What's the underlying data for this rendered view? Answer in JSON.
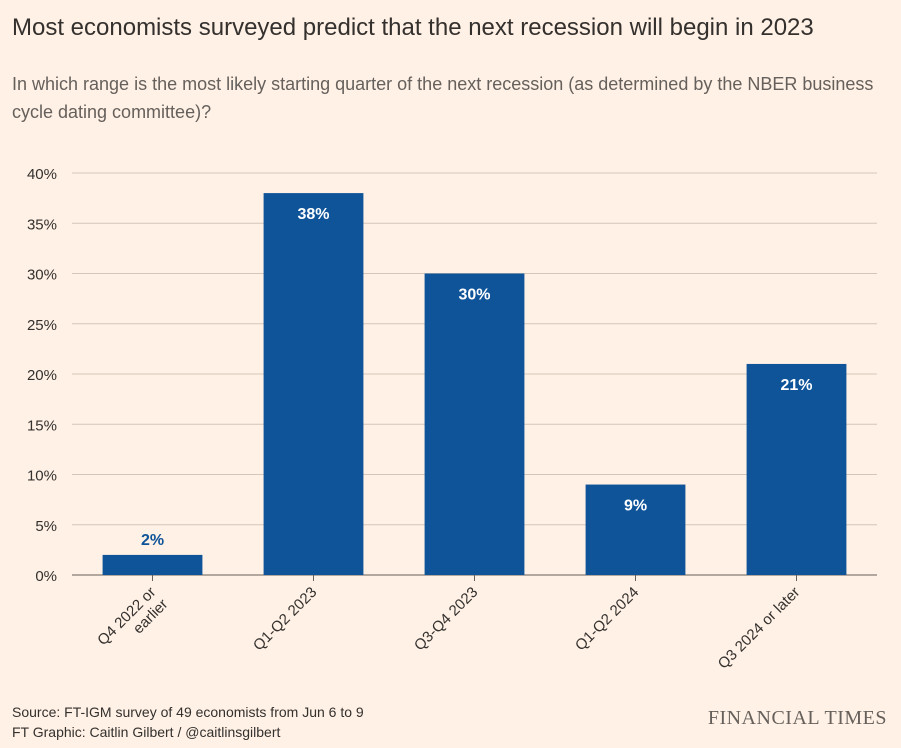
{
  "title": "Most economists surveyed predict that the next recession will begin in 2023",
  "subtitle": "In which range is the most likely starting quarter of the next recession (as determined by the NBER business cycle dating committee)?",
  "source_line": "Source: FT-IGM survey of 49 economists from Jun 6 to 9",
  "credit_line": "FT Graphic: Caitlin Gilbert / @caitlinsgilbert",
  "brand": "FINANCIAL TIMES",
  "colors": {
    "bar": "#0f5499",
    "grid": "#d4c6b8",
    "axis": "#66605c",
    "text": "#33302e",
    "background": "#fff1e5"
  },
  "chart_data": {
    "type": "bar",
    "categories": [
      [
        "Q4 2022 or",
        "earlier"
      ],
      [
        "Q1-Q2 2023"
      ],
      [
        "Q3-Q4 2023"
      ],
      [
        "Q1-Q2 2024"
      ],
      [
        "Q3 2024 or later"
      ]
    ],
    "values": [
      2,
      38,
      30,
      9,
      21
    ],
    "value_labels": [
      "2%",
      "38%",
      "30%",
      "9%",
      "21%"
    ],
    "y_ticks": [
      0,
      5,
      10,
      15,
      20,
      25,
      30,
      35,
      40
    ],
    "y_tick_labels": [
      "0%",
      "5%",
      "10%",
      "15%",
      "20%",
      "25%",
      "30%",
      "35%",
      "40%"
    ],
    "ylim": [
      0,
      40
    ],
    "grid": true,
    "xlabel": "",
    "ylabel": ""
  }
}
